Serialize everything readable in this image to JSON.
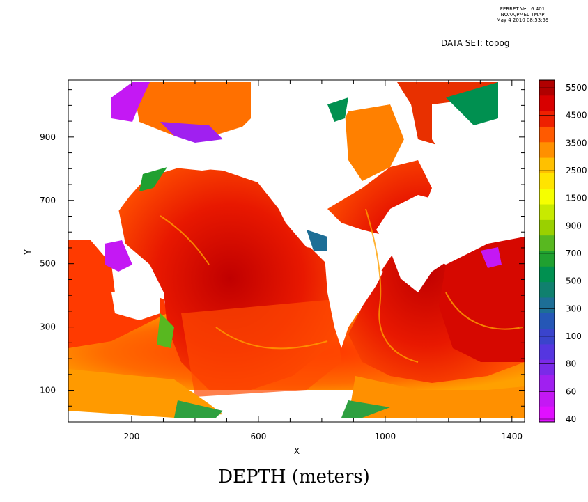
{
  "header": {
    "program": "FERRET Ver. 6.401",
    "organization": "NOAA/PMEL TMAP",
    "timestamp": "May  4 2010 08:53:59",
    "dataset_label": "DATA SET: topog"
  },
  "chart_data": {
    "type": "heatmap",
    "title": "DEPTH (meters)",
    "xlabel": "X",
    "ylabel": "Y",
    "xlim": [
      0,
      1440
    ],
    "ylim": [
      0,
      1080
    ],
    "xticks": [
      200,
      600,
      1000,
      1400
    ],
    "yticks": [
      100,
      300,
      500,
      700,
      900
    ],
    "colorbar": {
      "labels": [
        "5500",
        "4500",
        "3500",
        "2500",
        "1500",
        "900",
        "700",
        "500",
        "300",
        "100",
        "80",
        "60",
        "40"
      ],
      "colors": [
        "#b00000",
        "#d80000",
        "#ee2000",
        "#ff5a00",
        "#ff9000",
        "#ffc000",
        "#ffe400",
        "#f6ff00",
        "#c8ea00",
        "#9ad000",
        "#58b820",
        "#20a030",
        "#009050",
        "#10806e",
        "#1d6e96",
        "#2557b6",
        "#3a44cc",
        "#5536e0",
        "#7a2ae8",
        "#a020f0",
        "#c418f4",
        "#e010ff"
      ]
    },
    "legend": "right"
  }
}
